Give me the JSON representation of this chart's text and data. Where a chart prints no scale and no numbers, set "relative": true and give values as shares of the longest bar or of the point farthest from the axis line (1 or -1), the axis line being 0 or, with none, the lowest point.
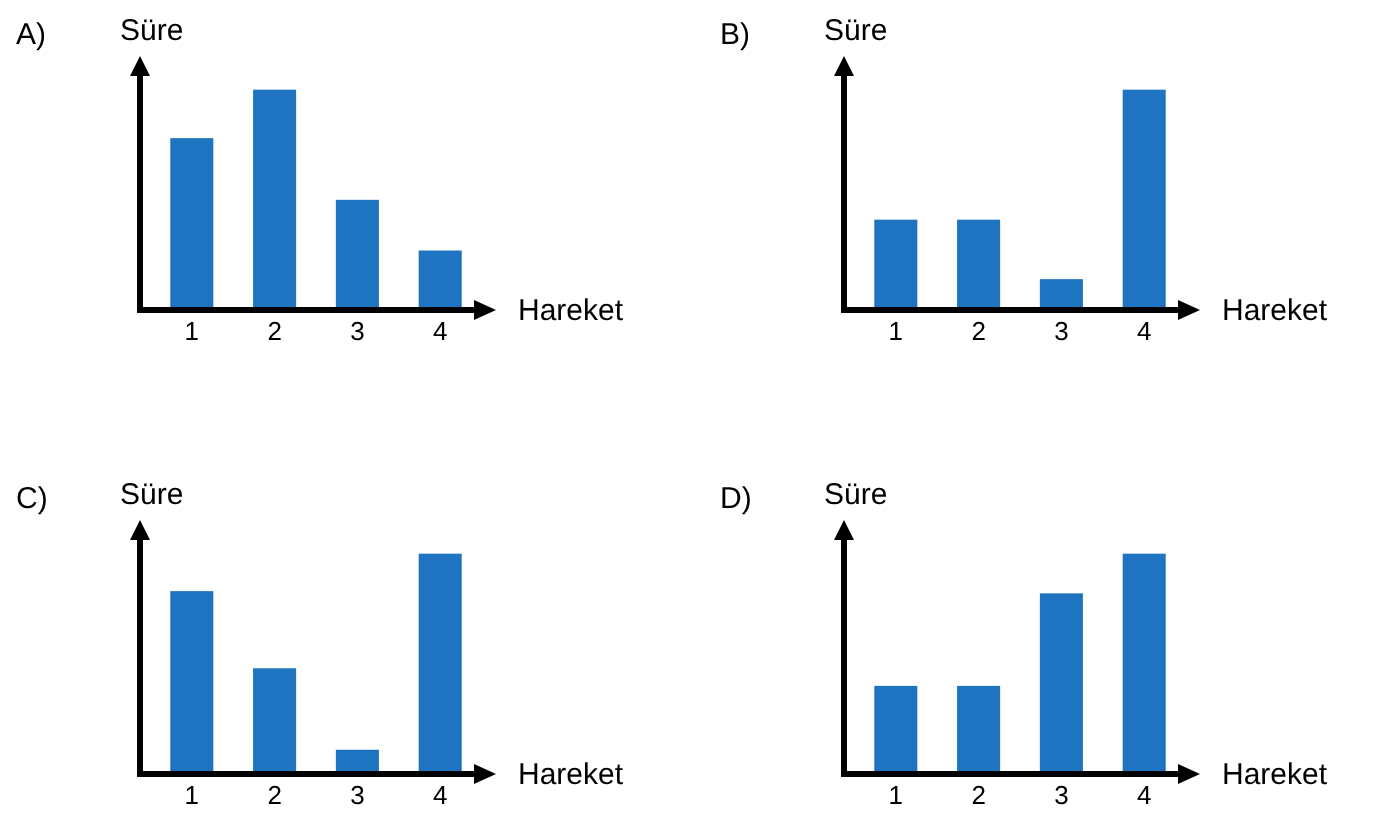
{
  "chart_data": [
    {
      "type": "bar",
      "title": "A)",
      "xlabel": "Hareket",
      "ylabel": "Süre",
      "categories": [
        "1",
        "2",
        "3",
        "4"
      ],
      "values": [
        0.78,
        1,
        0.5,
        0.27
      ],
      "color": "#1f74c1",
      "relative": true
    },
    {
      "type": "bar",
      "title": "B)",
      "xlabel": "Hareket",
      "ylabel": "Süre",
      "categories": [
        "1",
        "2",
        "3",
        "4"
      ],
      "values": [
        0.41,
        0.41,
        0.14,
        1
      ],
      "color": "#1f74c1",
      "relative": true
    },
    {
      "type": "bar",
      "title": "C)",
      "xlabel": "Hareket",
      "ylabel": "Süre",
      "categories": [
        "1",
        "2",
        "3",
        "4"
      ],
      "values": [
        0.83,
        0.48,
        0.11,
        1
      ],
      "color": "#1f74c1",
      "relative": true
    },
    {
      "type": "bar",
      "title": "D)",
      "xlabel": "Hareket",
      "ylabel": "Süre",
      "categories": [
        "1",
        "2",
        "3",
        "4"
      ],
      "values": [
        0.4,
        0.4,
        0.82,
        1
      ],
      "color": "#1f74c1",
      "relative": true
    }
  ]
}
